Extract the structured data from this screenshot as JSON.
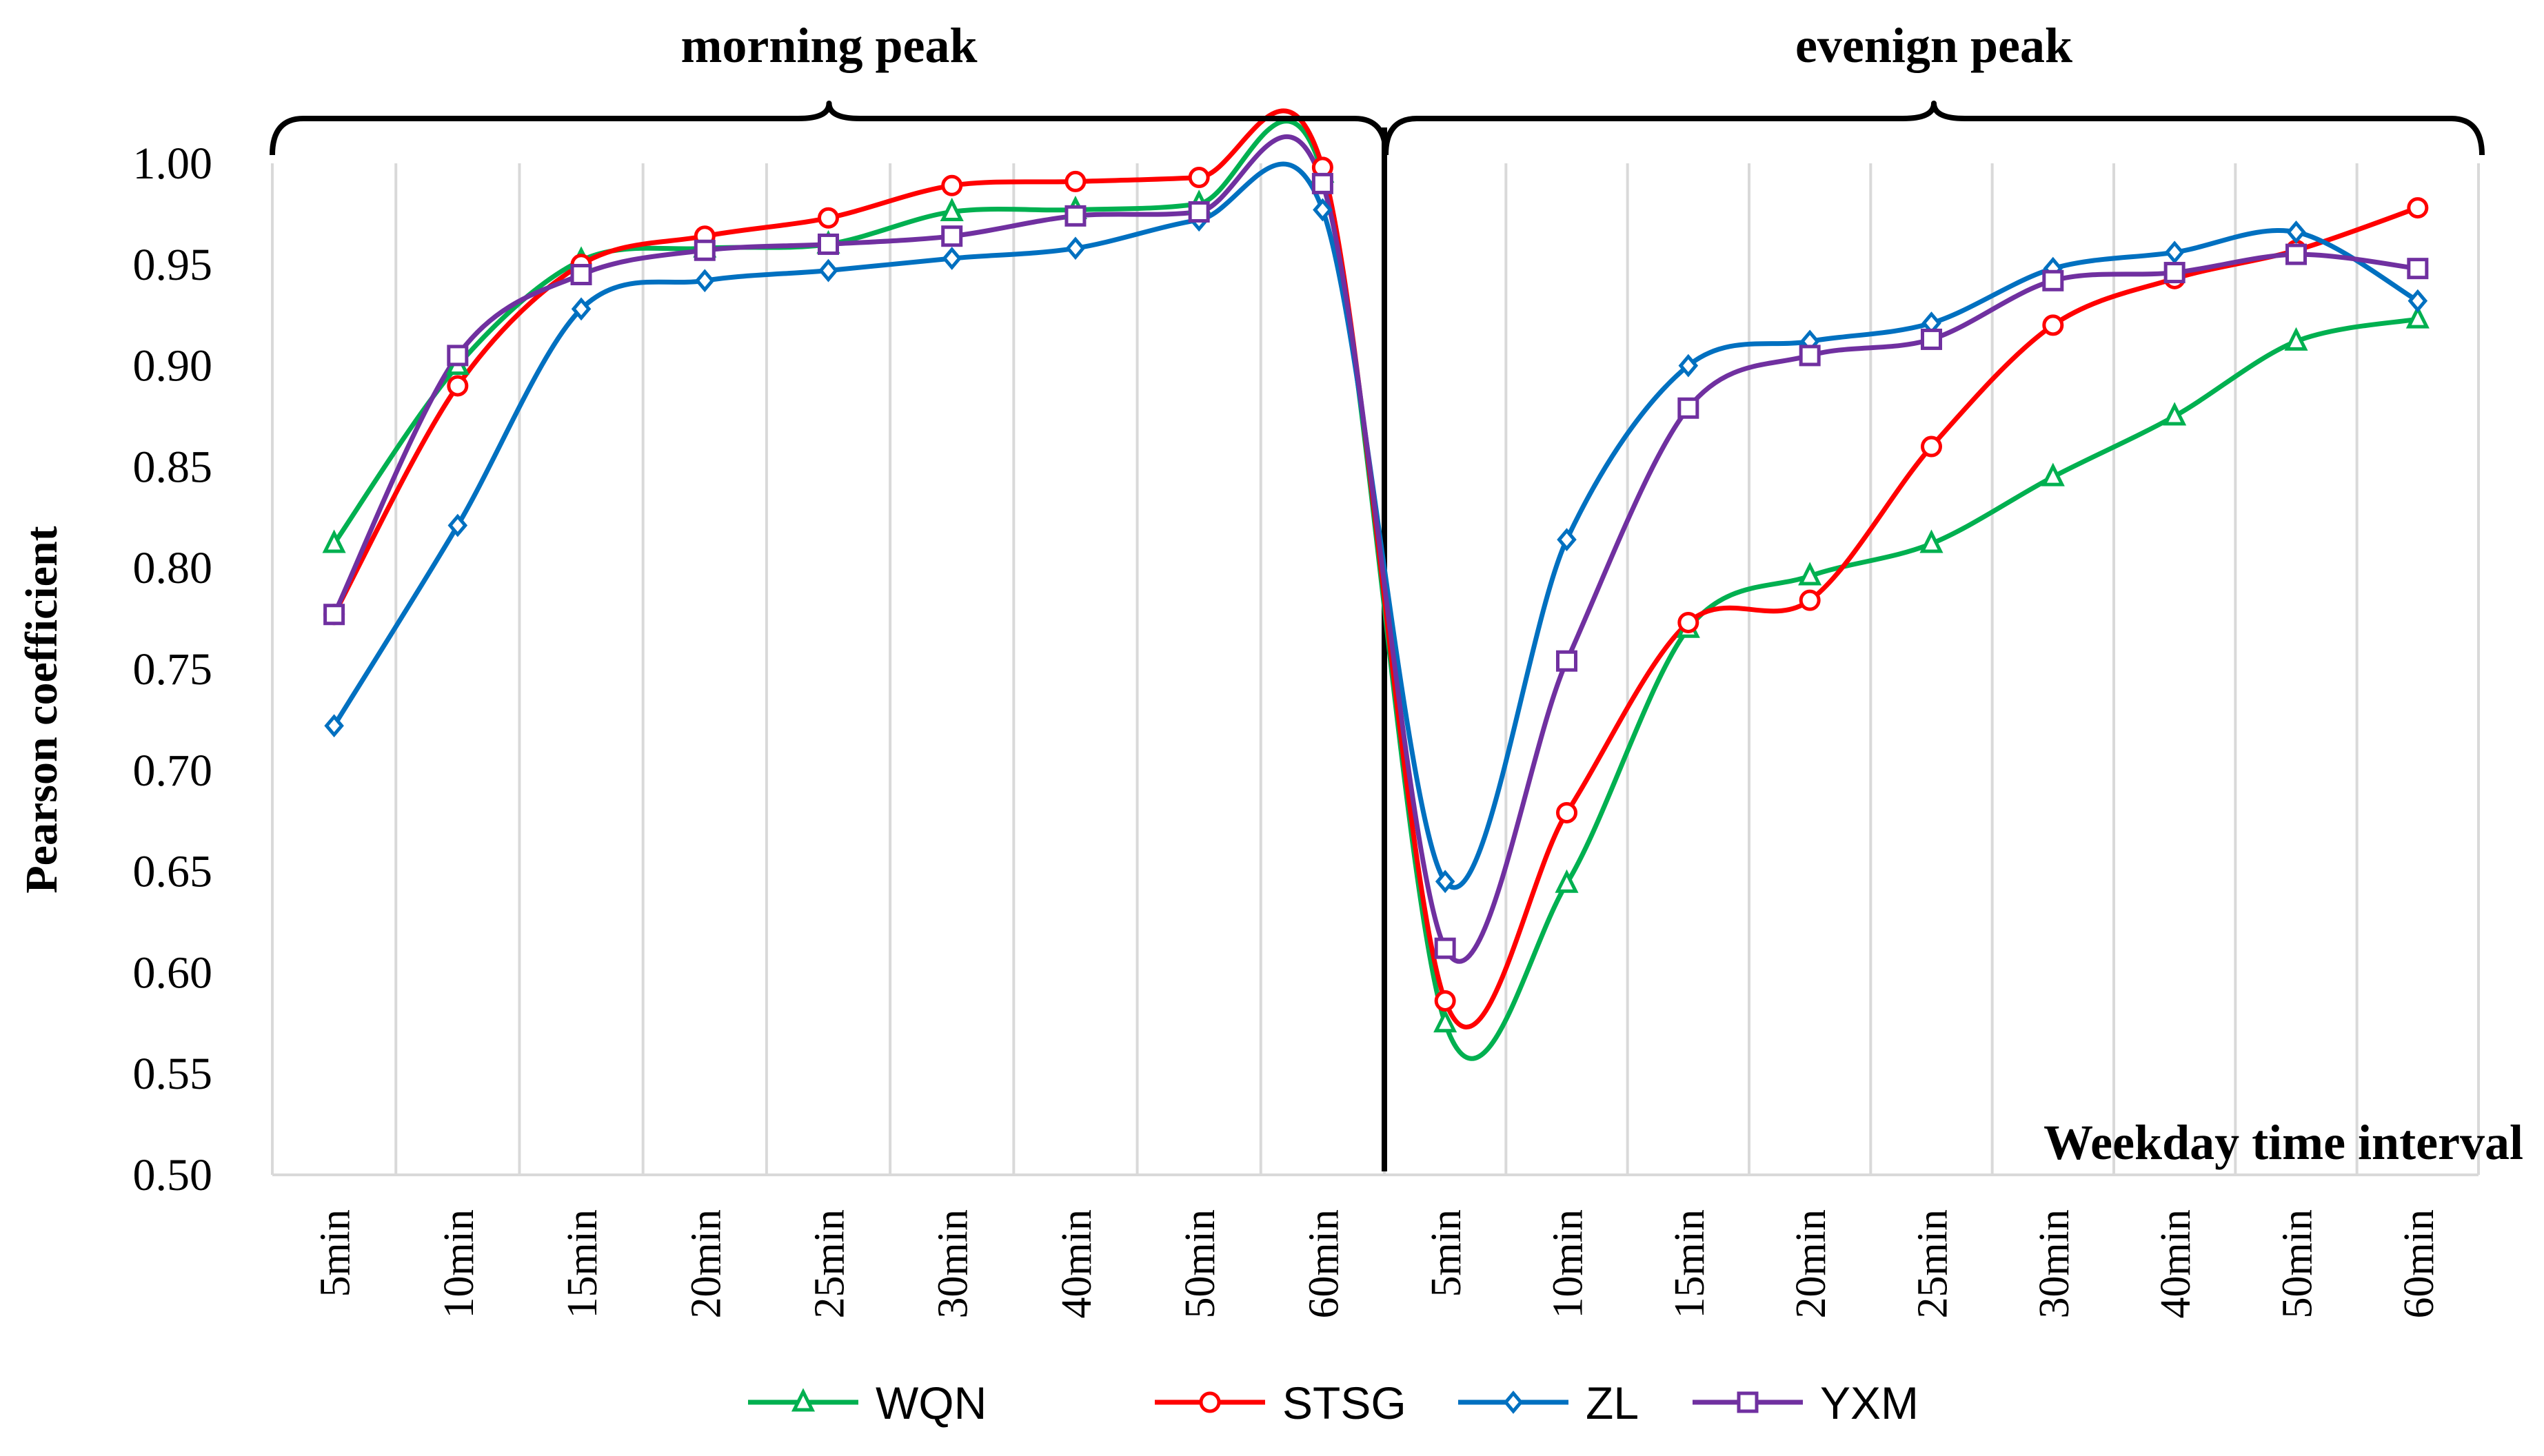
{
  "chart_data": {
    "type": "line",
    "ylabel": "Pearson coefficient",
    "xlabel": "Weekday time interval",
    "ylim": [
      0.5,
      1.0
    ],
    "yticks": [
      "0.50",
      "0.55",
      "0.60",
      "0.65",
      "0.70",
      "0.75",
      "0.80",
      "0.85",
      "0.90",
      "0.95",
      "1.00"
    ],
    "grid": "vertical",
    "legend_position": "bottom",
    "groups": [
      {
        "label": "morning peak",
        "categories": [
          "5min",
          "10min",
          "15min",
          "20min",
          "25min",
          "30min",
          "40min",
          "50min",
          "60min"
        ]
      },
      {
        "label": "evenign peak",
        "categories": [
          "5min",
          "10min",
          "15min",
          "20min",
          "25min",
          "30min",
          "40min",
          "50min",
          "60min"
        ]
      }
    ],
    "series": [
      {
        "name": "WQN",
        "color": "#00B050",
        "marker": "triangle",
        "values": [
          0.812,
          0.9,
          0.952,
          0.958,
          0.96,
          0.976,
          0.977,
          0.98,
          0.995,
          0.575,
          0.644,
          0.77,
          0.796,
          0.812,
          0.845,
          0.875,
          0.912,
          0.923
        ]
      },
      {
        "name": "STSG",
        "color": "#FF0000",
        "marker": "circle",
        "values": [
          0.777,
          0.89,
          0.95,
          0.964,
          0.973,
          0.989,
          0.991,
          0.993,
          0.998,
          0.586,
          0.679,
          0.773,
          0.784,
          0.86,
          0.92,
          0.943,
          0.957,
          0.978
        ]
      },
      {
        "name": "ZL",
        "color": "#0070C0",
        "marker": "diamond",
        "values": [
          0.722,
          0.821,
          0.928,
          0.942,
          0.947,
          0.953,
          0.958,
          0.972,
          0.977,
          0.645,
          0.814,
          0.9,
          0.912,
          0.921,
          0.948,
          0.956,
          0.966,
          0.932
        ]
      },
      {
        "name": "YXM",
        "color": "#7030A0",
        "marker": "square",
        "values": [
          0.777,
          0.905,
          0.945,
          0.957,
          0.96,
          0.964,
          0.974,
          0.976,
          0.99,
          0.612,
          0.754,
          0.879,
          0.905,
          0.913,
          0.942,
          0.946,
          0.955,
          0.948
        ]
      }
    ]
  }
}
